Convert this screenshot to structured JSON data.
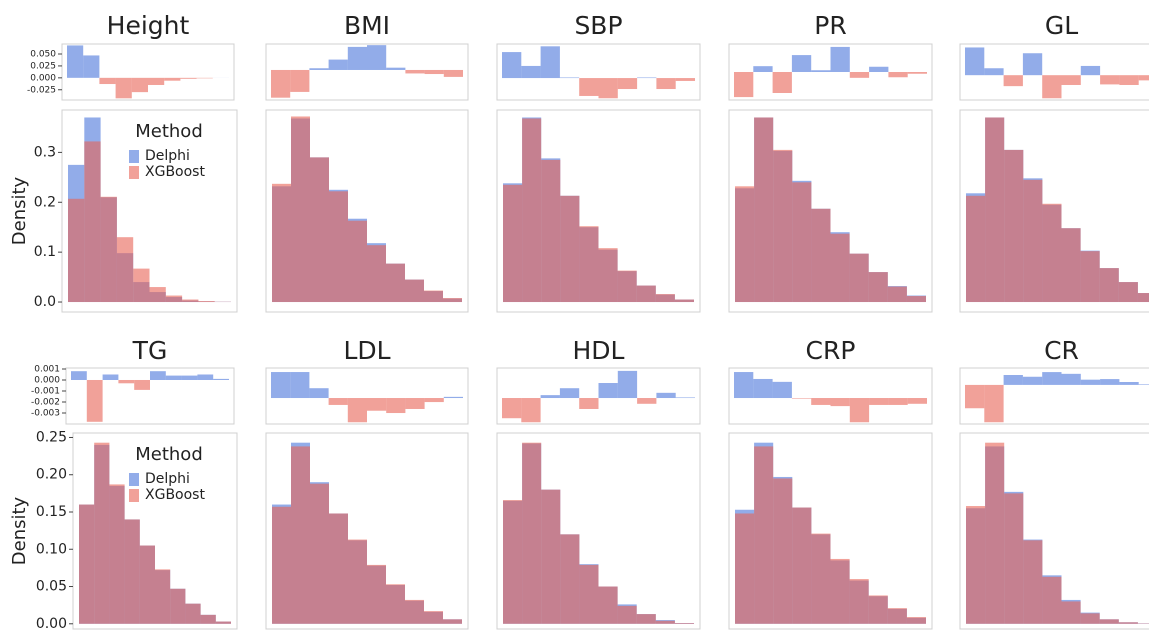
{
  "chart_data": [
    {
      "type": "bar",
      "title": "Height",
      "values": [
        0.068,
        0.047,
        -0.013,
        -0.043,
        -0.03,
        -0.015,
        -0.006,
        -0.002,
        -0.001,
        0.0001
      ],
      "ylim": [
        -0.0465,
        0.071
      ],
      "yticks": [
        {
          "value": 0.05,
          "label": "0.050"
        },
        0.025,
        {
          "value": 0,
          "label": "0.000"
        },
        -0.025
      ],
      "colors": {
        "positive": "#4975db",
        "negative": "#e86255"
      }
    },
    {
      "type": "histogram",
      "ylabel": "Density",
      "ylim": [
        -0.02,
        0.385
      ],
      "yticks": [
        {
          "value": 0,
          "label": "0.0"
        },
        0.1,
        0.2,
        0.3
      ],
      "legend": {
        "title": "Method",
        "position": "upper right"
      },
      "series": [
        {
          "name": "Delphi",
          "color": "#4975db",
          "values": [
            0.275,
            0.37,
            0.21,
            0.098,
            0.04,
            0.02,
            0.01,
            0.003,
            0.001,
            0.0005
          ]
        },
        {
          "name": "XGBoost",
          "color": "#e86255",
          "values": [
            0.207,
            0.322,
            0.211,
            0.13,
            0.067,
            0.03,
            0.013,
            0.005,
            0.002,
            0.0005
          ]
        }
      ]
    },
    {
      "type": "bar",
      "title": "BMI",
      "values": [
        -0.0048,
        -0.0038,
        0.0003,
        0.0018,
        0.004,
        0.0043,
        0.0004,
        -0.0006,
        -0.0007,
        -0.0012
      ],
      "ylim": [
        -0.0052,
        0.0045
      ],
      "colors": {
        "positive": "#4975db",
        "negative": "#e86255"
      }
    },
    {
      "type": "histogram",
      "ylim": [
        -0.02,
        0.385
      ],
      "series": [
        {
          "color": "#4975db",
          "values": [
            0.232,
            0.368,
            0.29,
            0.225,
            0.167,
            0.118,
            0.077,
            0.045,
            0.022,
            0.007
          ]
        },
        {
          "color": "#e86255",
          "values": [
            0.237,
            0.372,
            0.29,
            0.222,
            0.163,
            0.114,
            0.077,
            0.045,
            0.023,
            0.008
          ]
        }
      ]
    },
    {
      "type": "bar",
      "title": "SBP",
      "values": [
        0.0045,
        0.0021,
        0.0055,
        0.0001,
        -0.0031,
        -0.0035,
        -0.0019,
        0.0001,
        -0.0019,
        -0.0005
      ],
      "ylim": [
        -0.0038,
        0.0059
      ],
      "colors": {
        "positive": "#4975db",
        "negative": "#e86255"
      }
    },
    {
      "type": "histogram",
      "ylim": [
        -0.02,
        0.385
      ],
      "series": [
        {
          "color": "#4975db",
          "values": [
            0.238,
            0.37,
            0.288,
            0.213,
            0.15,
            0.105,
            0.062,
            0.033,
            0.015,
            0.005
          ]
        },
        {
          "color": "#e86255",
          "values": [
            0.235,
            0.368,
            0.285,
            0.213,
            0.152,
            0.108,
            0.063,
            0.033,
            0.016,
            0.005
          ]
        }
      ]
    },
    {
      "type": "bar",
      "title": "PR",
      "values": [
        -0.0043,
        0.001,
        -0.0036,
        0.0029,
        0.0003,
        0.0043,
        -0.001,
        0.0009,
        -0.0009,
        -0.0003
      ],
      "ylim": [
        -0.0048,
        0.0048
      ],
      "colors": {
        "positive": "#4975db",
        "negative": "#e86255"
      }
    },
    {
      "type": "histogram",
      "ylim": [
        -0.02,
        0.385
      ],
      "series": [
        {
          "color": "#4975db",
          "values": [
            0.228,
            0.37,
            0.303,
            0.243,
            0.187,
            0.14,
            0.097,
            0.06,
            0.032,
            0.013
          ]
        },
        {
          "color": "#e86255",
          "values": [
            0.232,
            0.37,
            0.305,
            0.24,
            0.187,
            0.137,
            0.097,
            0.06,
            0.031,
            0.012
          ]
        }
      ]
    },
    {
      "type": "bar",
      "title": "GL",
      "values": [
        0.0048,
        0.0012,
        -0.0019,
        0.0038,
        -0.004,
        -0.0017,
        0.0016,
        -0.0016,
        -0.0017,
        -0.0009
      ],
      "ylim": [
        -0.0043,
        0.0054
      ],
      "colors": {
        "positive": "#4975db",
        "negative": "#e86255"
      }
    },
    {
      "type": "histogram",
      "ylim": [
        -0.02,
        0.385
      ],
      "series": [
        {
          "color": "#4975db",
          "values": [
            0.218,
            0.37,
            0.305,
            0.248,
            0.195,
            0.148,
            0.103,
            0.068,
            0.04,
            0.018
          ]
        },
        {
          "color": "#e86255",
          "values": [
            0.213,
            0.37,
            0.305,
            0.245,
            0.197,
            0.148,
            0.102,
            0.068,
            0.04,
            0.018
          ]
        }
      ]
    },
    {
      "type": "bar",
      "title": "TG",
      "values": [
        0.0008,
        -0.0038,
        0.0005,
        -0.0003,
        -0.0009,
        0.0008,
        0.0004,
        0.0004,
        0.0005,
        0.0001
      ],
      "ylim": [
        -0.004,
        0.00109
      ],
      "yticks": [
        0.001,
        {
          "value": 0,
          "label": "0.000"
        },
        -0.001,
        -0.002,
        -0.003
      ],
      "colors": {
        "positive": "#4975db",
        "negative": "#e86255"
      }
    },
    {
      "type": "histogram",
      "ylabel": "Density",
      "ylim": [
        -0.007,
        0.256
      ],
      "yticks": [
        {
          "value": 0,
          "label": "0.00"
        },
        0.05,
        {
          "value": 0.1,
          "label": "0.10"
        },
        0.15,
        {
          "value": 0.2,
          "label": "0.20"
        },
        0.25
      ],
      "legend": {
        "title": "Method",
        "position": "upper right"
      },
      "series": [
        {
          "name": "Delphi",
          "color": "#4975db",
          "values": [
            0.16,
            0.24,
            0.185,
            0.14,
            0.105,
            0.072,
            0.047,
            0.027,
            0.012,
            0.003
          ]
        },
        {
          "name": "XGBoost",
          "color": "#e86255",
          "values": [
            0.16,
            0.243,
            0.187,
            0.14,
            0.105,
            0.073,
            0.047,
            0.027,
            0.012,
            0.003
          ]
        }
      ]
    },
    {
      "type": "bar",
      "title": "LDL",
      "values": [
        0.0045,
        0.0045,
        0.0017,
        -0.0012,
        -0.0042,
        -0.0022,
        -0.0026,
        -0.0019,
        -0.0007,
        0.0002
      ],
      "ylim": [
        -0.0045,
        0.0052
      ],
      "colors": {
        "positive": "#4975db",
        "negative": "#e86255"
      }
    },
    {
      "type": "histogram",
      "ylim": [
        -0.007,
        0.256
      ],
      "series": [
        {
          "color": "#4975db",
          "values": [
            0.16,
            0.243,
            0.19,
            0.148,
            0.112,
            0.078,
            0.052,
            0.031,
            0.016,
            0.006
          ]
        },
        {
          "color": "#e86255",
          "values": [
            0.157,
            0.238,
            0.188,
            0.148,
            0.113,
            0.079,
            0.053,
            0.032,
            0.017,
            0.006
          ]
        }
      ]
    },
    {
      "type": "bar",
      "title": "HDL",
      "values": [
        -0.0035,
        -0.0042,
        0.0005,
        0.0017,
        -0.0019,
        0.0026,
        0.0047,
        -0.001,
        0.0009,
        0.0001
      ],
      "ylim": [
        -0.0045,
        0.0052
      ],
      "colors": {
        "positive": "#4975db",
        "negative": "#e86255"
      }
    },
    {
      "type": "histogram",
      "ylim": [
        -0.007,
        0.256
      ],
      "series": [
        {
          "color": "#4975db",
          "values": [
            0.165,
            0.242,
            0.18,
            0.12,
            0.08,
            0.05,
            0.026,
            0.013,
            0.005,
            0.001
          ]
        },
        {
          "color": "#e86255",
          "values": [
            0.166,
            0.243,
            0.18,
            0.12,
            0.079,
            0.05,
            0.024,
            0.013,
            0.004,
            0.001
          ]
        }
      ]
    },
    {
      "type": "bar",
      "title": "CRP",
      "values": [
        0.0045,
        0.0033,
        0.0028,
        -0.0001,
        -0.0012,
        -0.0014,
        -0.0042,
        -0.0012,
        -0.0012,
        -0.001
      ],
      "ylim": [
        -0.0045,
        0.0052
      ],
      "colors": {
        "positive": "#4975db",
        "negative": "#e86255"
      }
    },
    {
      "type": "histogram",
      "ylim": [
        -0.007,
        0.256
      ],
      "series": [
        {
          "color": "#4975db",
          "values": [
            0.153,
            0.243,
            0.197,
            0.156,
            0.12,
            0.085,
            0.058,
            0.037,
            0.02,
            0.008
          ]
        },
        {
          "color": "#e86255",
          "values": [
            0.148,
            0.238,
            0.195,
            0.156,
            0.121,
            0.087,
            0.06,
            0.038,
            0.021,
            0.009
          ]
        }
      ]
    },
    {
      "type": "bar",
      "title": "CR",
      "values": [
        -0.004,
        -0.0064,
        0.0017,
        0.0014,
        0.0022,
        0.0019,
        0.0009,
        0.001,
        0.0005,
        0.0001
      ],
      "ylim": [
        -0.0067,
        0.0029
      ],
      "colors": {
        "positive": "#4975db",
        "negative": "#e86255"
      }
    },
    {
      "type": "histogram",
      "ylim": [
        -0.007,
        0.256
      ],
      "series": [
        {
          "color": "#4975db",
          "values": [
            0.155,
            0.238,
            0.177,
            0.113,
            0.065,
            0.032,
            0.015,
            0.006,
            0.002,
            0.0005
          ]
        },
        {
          "color": "#e86255",
          "values": [
            0.158,
            0.243,
            0.175,
            0.112,
            0.063,
            0.03,
            0.014,
            0.006,
            0.002,
            0.0005
          ]
        }
      ]
    }
  ]
}
